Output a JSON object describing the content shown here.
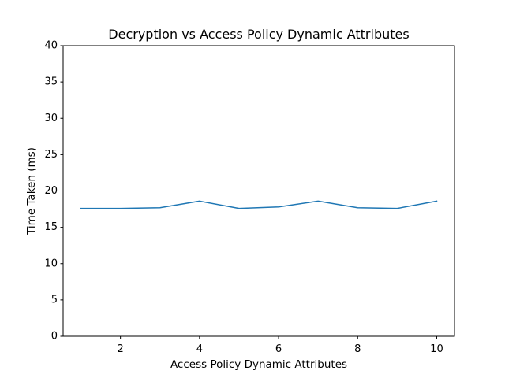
{
  "chart_data": {
    "type": "line",
    "title": "Decryption vs Access Policy Dynamic Attributes",
    "xlabel": "Access Policy Dynamic Attributes",
    "ylabel": "Time Taken (ms)",
    "xlim": [
      0.55,
      10.45
    ],
    "ylim": [
      0,
      40
    ],
    "xticks": [
      2,
      4,
      6,
      8,
      10
    ],
    "yticks": [
      0,
      5,
      10,
      15,
      20,
      25,
      30,
      35,
      40
    ],
    "grid": false,
    "series": [
      {
        "color": "#1f77b4",
        "x": [
          1,
          2,
          3,
          4,
          5,
          6,
          7,
          8,
          9,
          10
        ],
        "y": [
          17.6,
          17.6,
          17.7,
          18.6,
          17.6,
          17.8,
          18.6,
          17.7,
          17.6,
          18.6
        ]
      }
    ]
  }
}
